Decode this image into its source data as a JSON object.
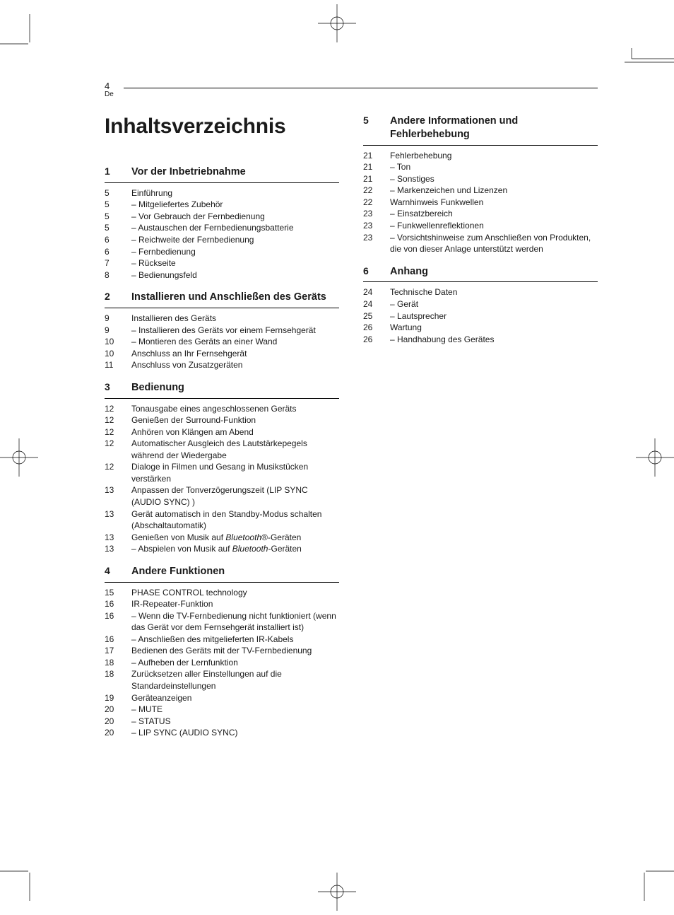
{
  "header": {
    "page_number": "4",
    "language": "De"
  },
  "title": "Inhaltsverzeichnis",
  "sections": [
    {
      "num": "1",
      "title": "Vor der Inbetriebnahme",
      "col": 0,
      "entries": [
        {
          "p": "5",
          "t": "Einführung"
        },
        {
          "p": "5",
          "t": "Mitgeliefertes Zubehör",
          "sub": true
        },
        {
          "p": "5",
          "t": "Vor Gebrauch der Fernbedienung",
          "sub": true
        },
        {
          "p": "5",
          "t": "Austauschen der Fernbedienungsbatterie",
          "sub": true
        },
        {
          "p": "6",
          "t": "Reichweite der Fernbedienung",
          "sub": true
        },
        {
          "p": "6",
          "t": "Fernbedienung",
          "sub": true
        },
        {
          "p": "7",
          "t": "Rückseite",
          "sub": true
        },
        {
          "p": "8",
          "t": "Bedienungsfeld",
          "sub": true
        }
      ]
    },
    {
      "num": "2",
      "title": "Installieren und Anschließen des Geräts",
      "col": 0,
      "entries": [
        {
          "p": "9",
          "t": "Installieren des Geräts"
        },
        {
          "p": "9",
          "t": "Installieren des Geräts vor einem Fernsehgerät",
          "sub": true
        },
        {
          "p": "10",
          "t": "Montieren des Geräts an einer Wand",
          "sub": true
        },
        {
          "p": "10",
          "t": "Anschluss an Ihr Fernsehgerät"
        },
        {
          "p": "11",
          "t": "Anschluss von Zusatzgeräten"
        }
      ]
    },
    {
      "num": "3",
      "title": "Bedienung",
      "col": 0,
      "entries": [
        {
          "p": "12",
          "t": "Tonausgabe eines angeschlossenen Geräts"
        },
        {
          "p": "12",
          "t": "Genießen der Surround-Funktion"
        },
        {
          "p": "12",
          "t": "Anhören von Klängen am Abend"
        },
        {
          "p": "12",
          "t": "Automatischer Ausgleich des Lautstärkepegels während der Wiedergabe"
        },
        {
          "p": "12",
          "t": "Dialoge in Filmen und Gesang in Musikstücken verstärken"
        },
        {
          "p": "13",
          "t": "Anpassen der Tonverzögerungszeit (LIP SYNC (AUDIO SYNC) )"
        },
        {
          "p": "13",
          "t": "Gerät automatisch in den Standby-Modus schalten (Abschaltautomatik)"
        },
        {
          "p": "13",
          "html": "Genießen von Musik auf <span class=\"italic\">Bluetooth</span>®-Geräten"
        },
        {
          "p": "13",
          "html": "Abspielen von Musik auf <span class=\"italic\">Bluetooth</span>-Geräten",
          "sub": true
        }
      ]
    },
    {
      "num": "4",
      "title": "Andere Funktionen",
      "col": 0,
      "entries": [
        {
          "p": "15",
          "t": "PHASE CONTROL technology"
        },
        {
          "p": "16",
          "t": "IR-Repeater-Funktion"
        },
        {
          "p": "16",
          "t": "Wenn die TV-Fernbedienung nicht funktioniert (wenn das Gerät vor dem Fernsehgerät installiert ist)",
          "sub": true
        },
        {
          "p": "16",
          "t": "Anschließen des mitgelieferten IR-Kabels",
          "sub": true
        },
        {
          "p": "17",
          "t": "Bedienen des Geräts mit der TV-Fernbedienung"
        },
        {
          "p": "18",
          "t": "Aufheben der Lernfunktion",
          "sub": true
        },
        {
          "p": "18",
          "t": "Zurücksetzen aller Einstellungen auf die Standardeinstellungen"
        },
        {
          "p": "19",
          "t": "Geräteanzeigen"
        },
        {
          "p": "20",
          "t": "MUTE",
          "sub": true
        },
        {
          "p": "20",
          "t": "STATUS",
          "sub": true
        },
        {
          "p": "20",
          "t": "LIP SYNC (AUDIO SYNC)",
          "sub": true
        }
      ]
    },
    {
      "num": "5",
      "title": "Andere Informationen und Fehlerbehebung",
      "col": 1,
      "entries": [
        {
          "p": "21",
          "t": "Fehlerbehebung"
        },
        {
          "p": "21",
          "t": "Ton",
          "sub": true
        },
        {
          "p": "21",
          "t": "Sonstiges",
          "sub": true
        },
        {
          "p": "22",
          "t": "Markenzeichen und Lizenzen",
          "sub": true
        },
        {
          "p": "22",
          "t": "Warnhinweis Funkwellen"
        },
        {
          "p": "23",
          "t": "Einsatzbereich",
          "sub": true
        },
        {
          "p": "23",
          "t": "Funkwellenreflektionen",
          "sub": true
        },
        {
          "p": "23",
          "t": "Vorsichtshinweise zum Anschließen von Produkten, die von dieser Anlage unterstützt werden",
          "sub": true
        }
      ]
    },
    {
      "num": "6",
      "title": "Anhang",
      "col": 1,
      "entries": [
        {
          "p": "24",
          "t": "Technische Daten"
        },
        {
          "p": "24",
          "t": "Gerät",
          "sub": true
        },
        {
          "p": "25",
          "t": "Lautsprecher",
          "sub": true
        },
        {
          "p": "26",
          "t": "Wartung"
        },
        {
          "p": "26",
          "t": "Handhabung des Gerätes",
          "sub": true
        }
      ]
    }
  ]
}
